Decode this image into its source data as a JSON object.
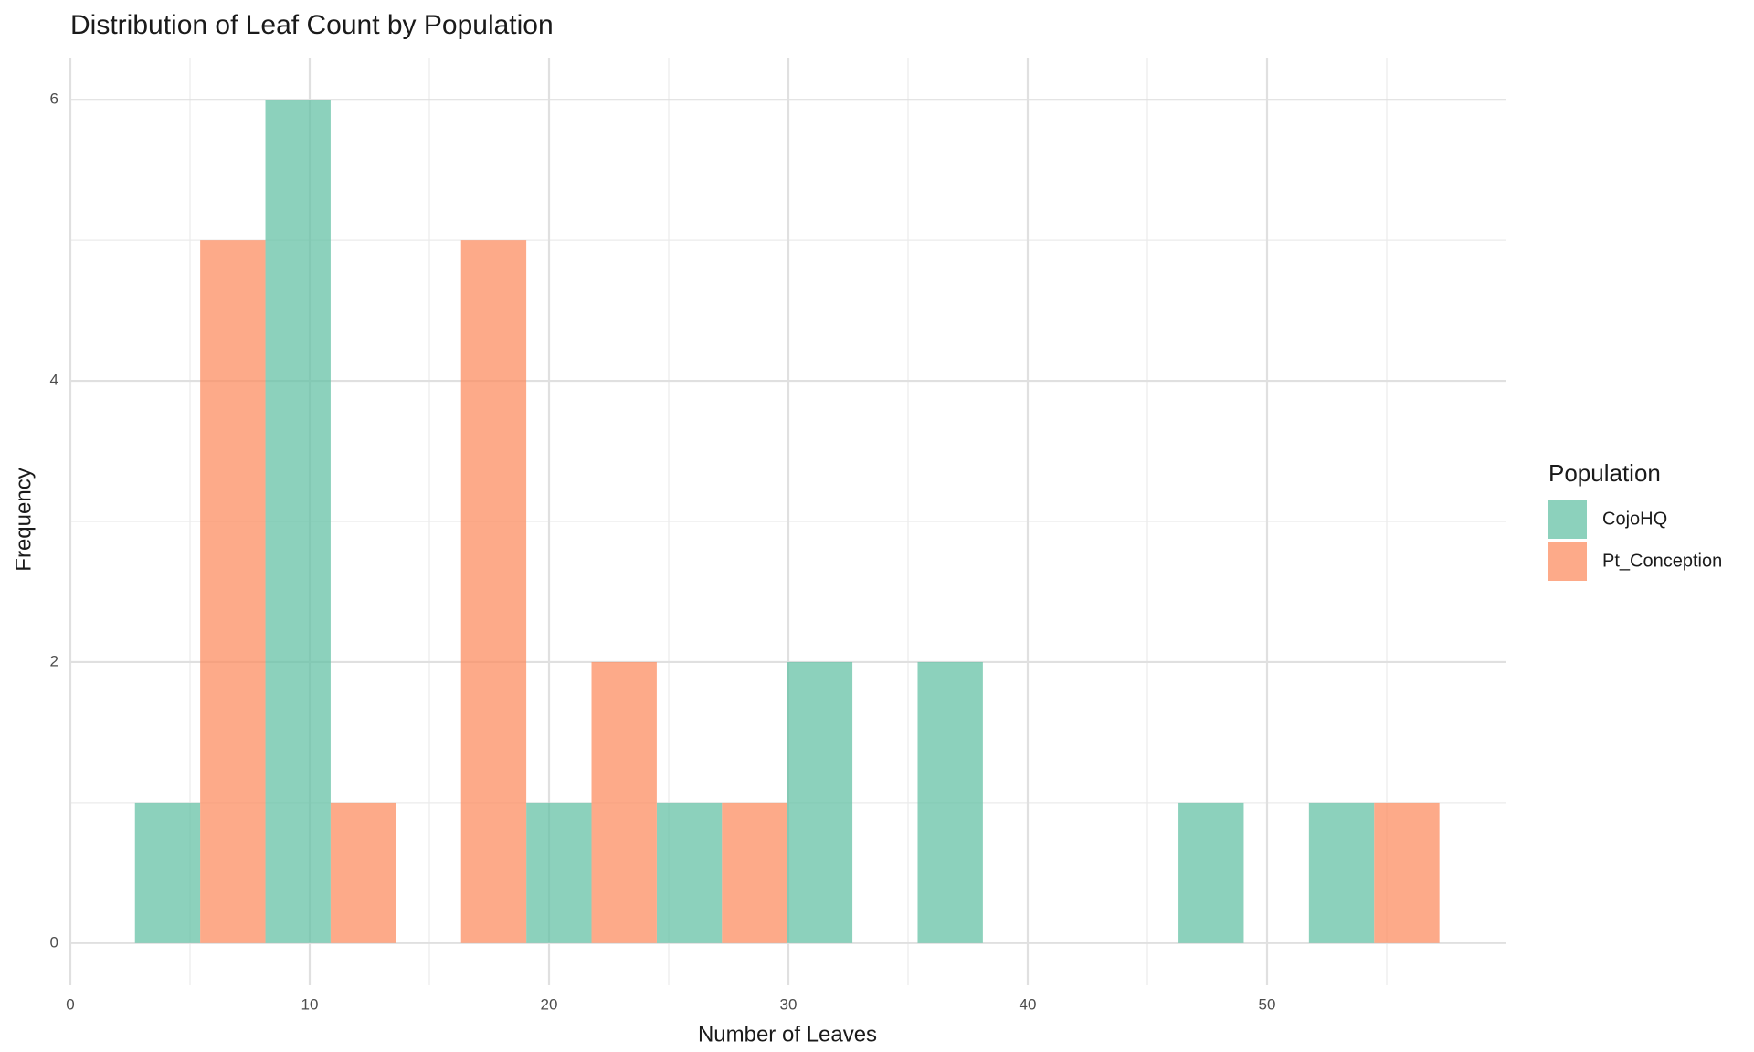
{
  "chart_data": {
    "type": "histogram",
    "title": "Distribution of Leaf Count by Population",
    "x_label": "Number of Leaves",
    "y_label": "Frequency",
    "legend_title": "Population",
    "legend_position": "right",
    "grid": true,
    "bins": [
      2.7,
      8.15,
      13.6,
      19.05,
      24.5,
      29.95,
      35.4,
      40.85,
      46.3,
      51.75,
      57.2
    ],
    "series": [
      {
        "name": "CojoHQ",
        "color": "#66c2a5",
        "values": [
          1,
          6,
          0,
          1,
          1,
          2,
          2,
          0,
          1,
          1
        ]
      },
      {
        "name": "Pt_Conception",
        "color": "#fc8d62",
        "values": [
          5,
          1,
          5,
          2,
          1,
          0,
          0,
          0,
          0,
          1
        ]
      }
    ],
    "xlim": [
      0,
      60
    ],
    "xticks": [
      0,
      10,
      20,
      30,
      40,
      50
    ],
    "ylim": [
      -0.3,
      6.3
    ],
    "yticks": [
      0,
      2,
      4,
      6
    ]
  }
}
